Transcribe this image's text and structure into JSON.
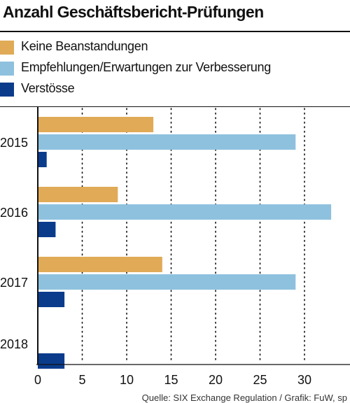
{
  "colors": {
    "keine": "#e0aa56",
    "empfehlungen": "#8ec1de",
    "verstoesse": "#0b3c8c"
  },
  "chart_data": {
    "type": "bar",
    "orientation": "horizontal",
    "title": "Anzahl Geschäftsbericht-Prüfungen",
    "categories": [
      "2015",
      "2016",
      "2017",
      "2018"
    ],
    "series": [
      {
        "name": "Keine Beanstandungen",
        "color": "#e0aa56",
        "values": [
          13,
          9,
          14,
          0
        ]
      },
      {
        "name": "Empfehlungen/Erwartungen zur Verbesserung",
        "color": "#8ec1de",
        "values": [
          29,
          33,
          29,
          0
        ]
      },
      {
        "name": "Verstösse",
        "color": "#0b3c8c",
        "values": [
          1,
          2,
          3,
          3
        ]
      }
    ],
    "xlim": [
      0,
      35
    ],
    "xticks": [
      0,
      5,
      10,
      15,
      20,
      25,
      30
    ],
    "grid": "vertical dotted",
    "legend": "top-left"
  },
  "source": "Quelle: SIX Exchange Regulation / Grafik: FuW, sp"
}
